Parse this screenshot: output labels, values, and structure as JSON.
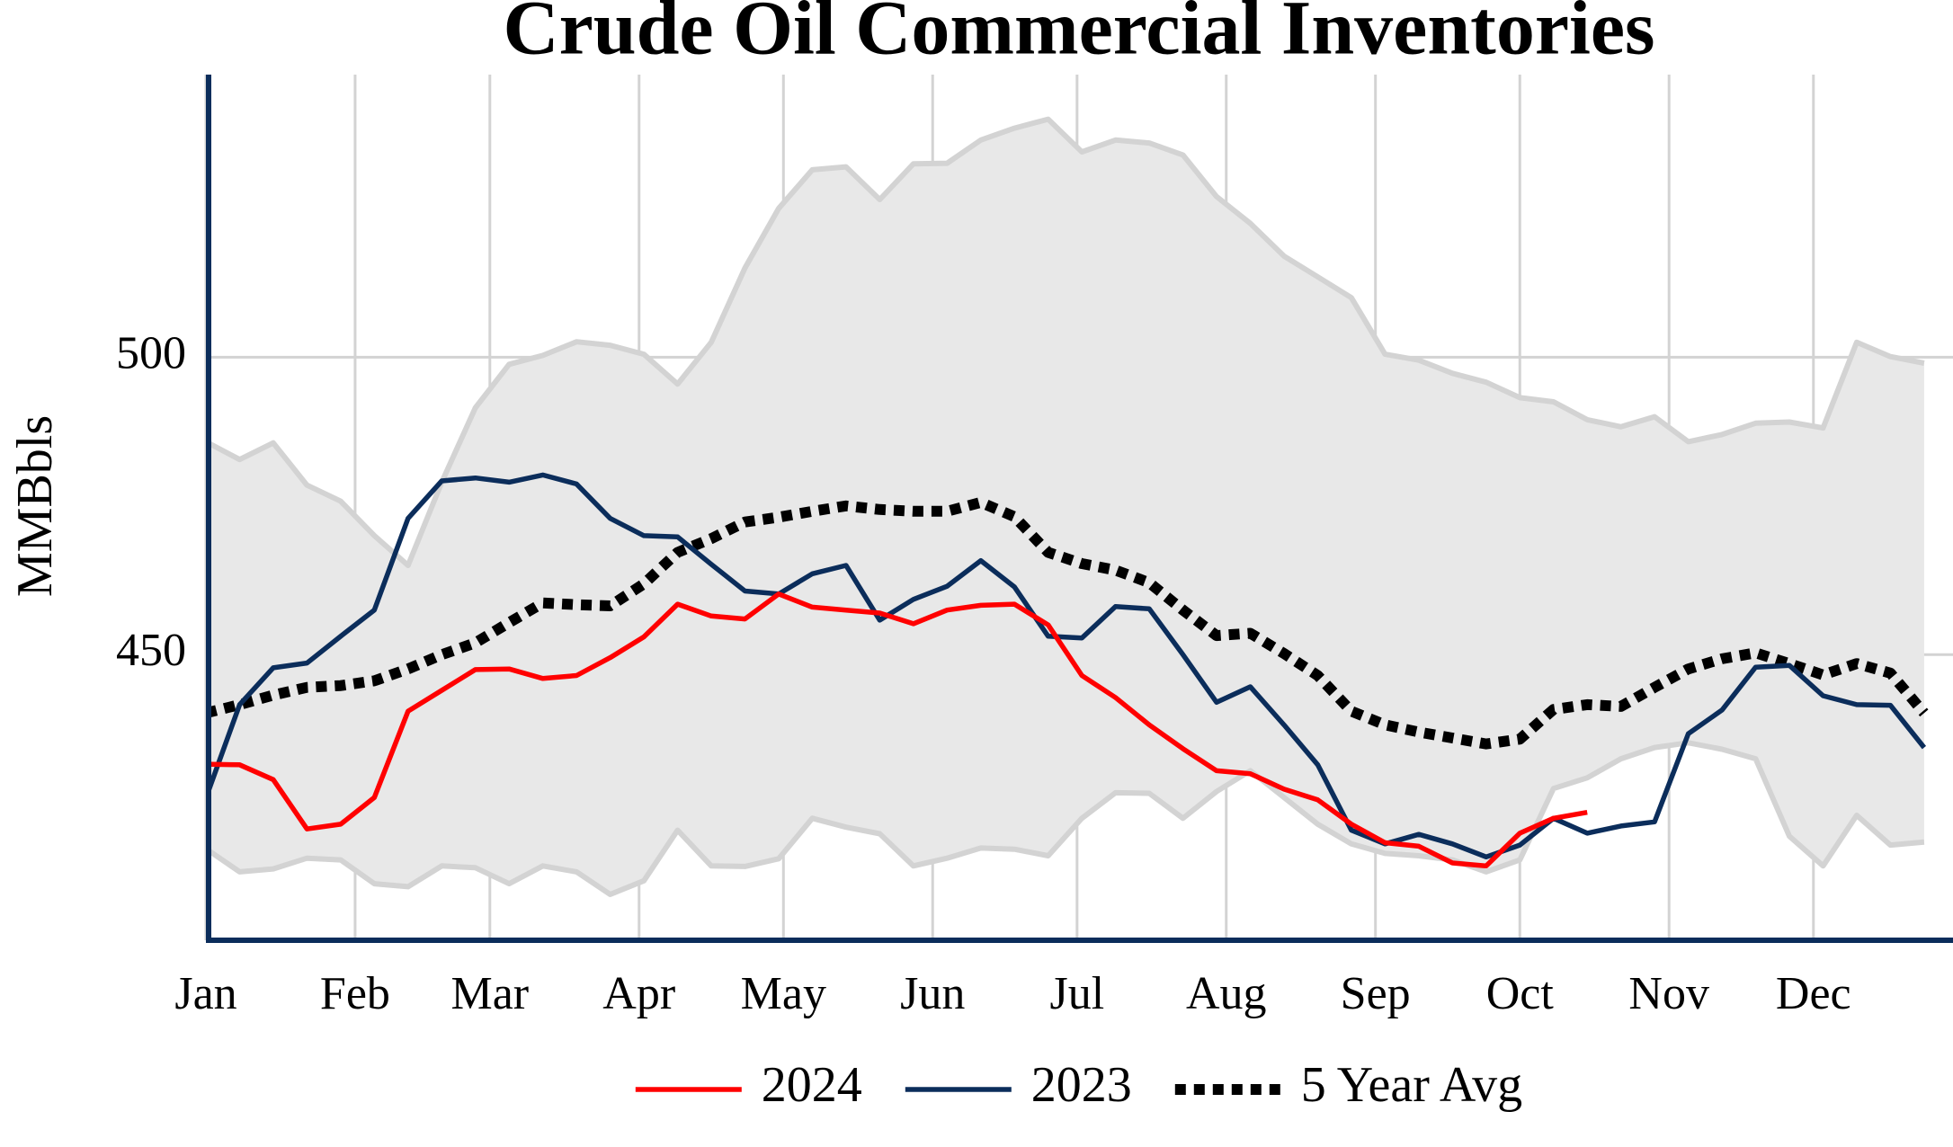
{
  "chart_data": {
    "type": "line",
    "title": "Crude Oil Commercial Inventories",
    "y_label": "MMBbls",
    "x": [
      1,
      8,
      15,
      22,
      29,
      36,
      43,
      50,
      57,
      64,
      71,
      78,
      85,
      92,
      99,
      106,
      113,
      120,
      127,
      134,
      141,
      148,
      155,
      162,
      169,
      176,
      183,
      190,
      197,
      204,
      211,
      218,
      225,
      232,
      239,
      246,
      253,
      260,
      267,
      274,
      281,
      288,
      295,
      302,
      309,
      316,
      323,
      330,
      337,
      344,
      351,
      358
    ],
    "xlim": [
      1,
      364
    ],
    "xticks": [
      {
        "value": 1,
        "label": "Jan"
      },
      {
        "value": 32,
        "label": "Feb"
      },
      {
        "value": 60,
        "label": "Mar"
      },
      {
        "value": 91,
        "label": "Apr"
      },
      {
        "value": 121,
        "label": "May"
      },
      {
        "value": 152,
        "label": "Jun"
      },
      {
        "value": 182,
        "label": "Jul"
      },
      {
        "value": 213,
        "label": "Aug"
      },
      {
        "value": 244,
        "label": "Sep"
      },
      {
        "value": 274,
        "label": "Oct"
      },
      {
        "value": 305,
        "label": "Nov"
      },
      {
        "value": 335,
        "label": "Dec"
      }
    ],
    "ylim": [
      402,
      547.5
    ],
    "yticks": [
      450,
      500
    ],
    "grid": true,
    "band": {
      "color": "#e8e8e8",
      "edge_color": "#d3d3d3",
      "low": [
        417.4,
        413.5,
        414,
        415.8,
        415.5,
        411.5,
        411,
        414.5,
        414.2,
        411.5,
        414.5,
        413.5,
        409.7,
        412,
        420.5,
        414.5,
        414.4,
        415.7,
        422.5,
        421,
        419.9,
        414.5,
        415.8,
        417.5,
        417.3,
        416.2,
        422.5,
        426.8,
        426.7,
        422.5,
        427,
        430.5,
        426,
        421.5,
        418.2,
        416.6,
        416.2,
        415.5,
        413.5,
        415.5,
        427.5,
        429.3,
        432.5,
        434.4,
        435.2,
        434.1,
        432.5,
        419.5,
        414.5,
        423,
        418,
        418.5
      ],
      "high": [
        485.8,
        482.8,
        485.6,
        478.5,
        475.8,
        470,
        465,
        479,
        491.5,
        498.8,
        500.3,
        502.6,
        502,
        500.5,
        495.5,
        502.5,
        515,
        525,
        531.5,
        532,
        526.5,
        532.5,
        532.6,
        536.5,
        538.5,
        540,
        534.5,
        536.5,
        536,
        534,
        527,
        522.5,
        517,
        513.5,
        510,
        500.5,
        499.5,
        497.3,
        495.8,
        493.2,
        492.5,
        489.5,
        488.3,
        490,
        485.8,
        487,
        488.9,
        489.1,
        488.1,
        502.5,
        500.1,
        499
      ]
    },
    "series": [
      {
        "name": "2024",
        "color": "#ff0000",
        "dash": false,
        "values": [
          431.6,
          431.5,
          429,
          420.7,
          421.5,
          426,
          440.5,
          444,
          447.5,
          447.6,
          446,
          446.5,
          449.5,
          453,
          458.5,
          456.5,
          456,
          460.2,
          458,
          457.5,
          457,
          455.2,
          457.5,
          458.3,
          458.5,
          455,
          446.5,
          442.8,
          438.2,
          434.2,
          430.5,
          430,
          427.4,
          425.6,
          421.5,
          418.4,
          417.8,
          415,
          414.5,
          420,
          422.5,
          423.5,
          null,
          null,
          null,
          null,
          null,
          null,
          null,
          null,
          null,
          null
        ]
      },
      {
        "name": "2023",
        "color": "#0b2d5b",
        "dash": false,
        "values": [
          425.9,
          441.6,
          447.8,
          448.6,
          453.1,
          457.5,
          472.9,
          479.2,
          479.7,
          479,
          480.2,
          478.7,
          472.9,
          470,
          469.8,
          465.2,
          460.7,
          460.2,
          463.6,
          465,
          455.8,
          459.3,
          461.5,
          465.8,
          461.4,
          453.1,
          452.8,
          458.1,
          457.7,
          450,
          442,
          444.6,
          438.2,
          431.5,
          420.5,
          418.2,
          419.8,
          418.2,
          416,
          418,
          422.5,
          420,
          421.2,
          421.9,
          436.7,
          440.7,
          447.9,
          448.2,
          443.1,
          441.6,
          441.5,
          434.4
        ]
      },
      {
        "name": "5 Year Avg",
        "color": "#000000",
        "dash": true,
        "values": [
          440.2,
          441.6,
          443.2,
          444.5,
          444.8,
          445.6,
          447.6,
          450,
          452,
          455.4,
          458.7,
          458.4,
          458.2,
          461.9,
          467.2,
          469.5,
          472.3,
          473.1,
          474.1,
          475,
          474.4,
          474.1,
          474.1,
          475.6,
          473.2,
          467.2,
          465.3,
          464.2,
          462.1,
          457.5,
          453.2,
          453.6,
          450.2,
          446.5,
          440.5,
          438.2,
          437,
          436,
          435,
          435.8,
          440.8,
          441.6,
          441.3,
          444.5,
          447.6,
          449.3,
          450.3,
          448.5,
          446.6,
          448.5,
          446.9,
          440.2
        ]
      }
    ]
  }
}
